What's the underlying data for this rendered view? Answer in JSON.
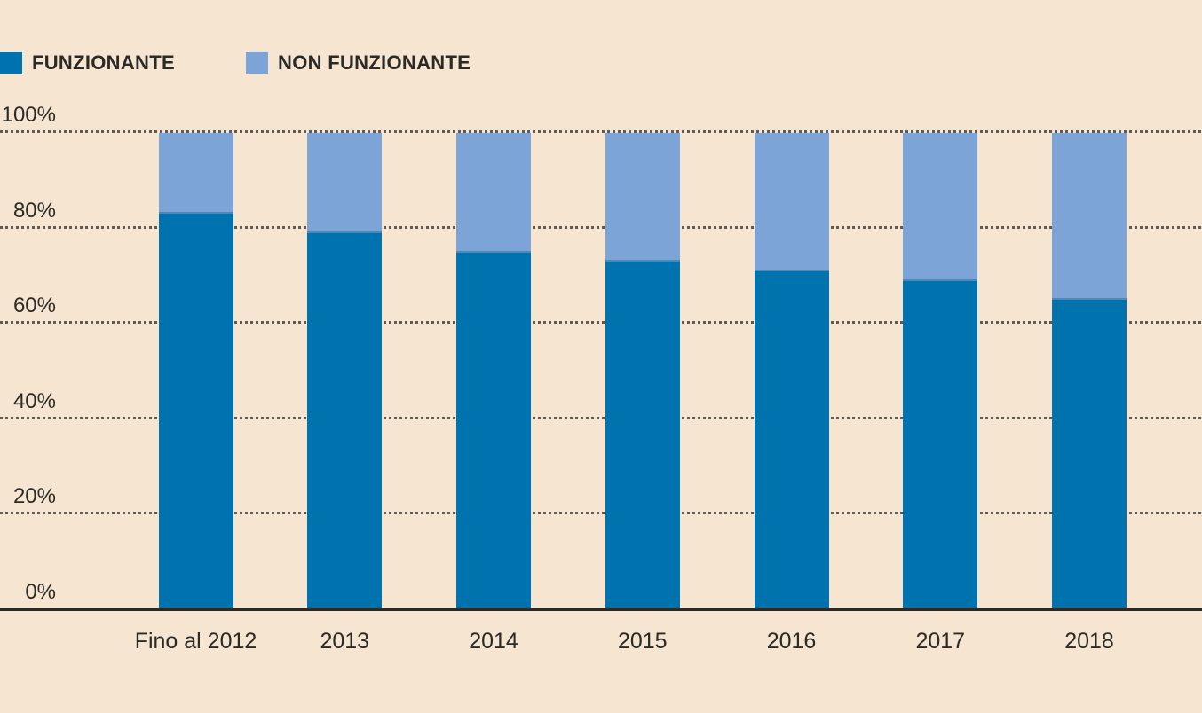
{
  "legend": {
    "items": [
      {
        "label": "FUNZIONANTE",
        "color": "#0073ae"
      },
      {
        "label": "NON FUNZIONANTE",
        "color": "#7da4d7"
      }
    ]
  },
  "chart_data": {
    "type": "bar",
    "stacked": true,
    "orientation": "vertical",
    "categories": [
      "Fino al 2012",
      "2013",
      "2014",
      "2015",
      "2016",
      "2017",
      "2018"
    ],
    "series": [
      {
        "name": "FUNZIONANTE",
        "color": "#0073ae",
        "values": [
          83,
          79,
          75,
          73,
          71,
          69,
          65
        ]
      },
      {
        "name": "NON FUNZIONANTE",
        "color": "#7da4d7",
        "values": [
          17,
          21,
          25,
          27,
          29,
          31,
          35
        ]
      }
    ],
    "title": "",
    "xlabel": "",
    "ylabel": "",
    "ylim": [
      0,
      100
    ],
    "y_ticks": [
      {
        "value": 100,
        "label": "100%"
      },
      {
        "value": 80,
        "label": "80%"
      },
      {
        "value": 60,
        "label": "60%"
      },
      {
        "value": 40,
        "label": "40%"
      },
      {
        "value": 20,
        "label": "20%"
      },
      {
        "value": 0,
        "label": "0%"
      }
    ],
    "grid": "horizontal-dotted",
    "legend_position": "top-left"
  },
  "colors": {
    "background": "#f5e5d1",
    "funzionante": "#0073ae",
    "non_funzionante": "#7da4d7",
    "text": "#2b2a26",
    "gridline": "#5f5a52",
    "axis": "#2b2a26"
  }
}
